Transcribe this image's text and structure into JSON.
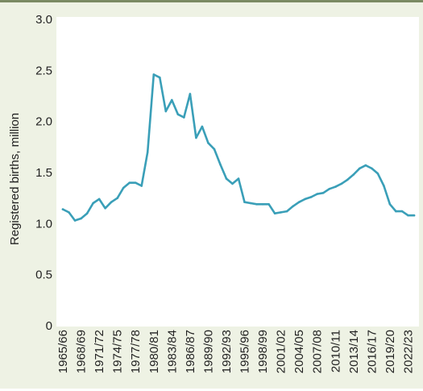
{
  "chart_data": {
    "type": "line",
    "title": "",
    "xlabel": "",
    "ylabel": "Registered births, million",
    "ylim": [
      0,
      3.0
    ],
    "yticks": [
      "3.0",
      "2.5",
      "2.0",
      "1.5",
      "1.0",
      "0.5",
      "0"
    ],
    "ytick_values": [
      3.0,
      2.5,
      2.0,
      1.5,
      1.0,
      0.5,
      0
    ],
    "x_tick_labels": [
      "1965/66",
      "1968/69",
      "1971/72",
      "1974/75",
      "1977/78",
      "1980/81",
      "1983/84",
      "1986/87",
      "1989/90",
      "1992/93",
      "1995/96",
      "1998/99",
      "2001/02",
      "2004/05",
      "2007/08",
      "2010/11",
      "2013/14",
      "2016/17",
      "2019/20",
      "2022/23"
    ],
    "grid": false,
    "line_color": "#3a9fb8",
    "series": [
      {
        "x": [
          "1965/66",
          "1966/67",
          "1967/68",
          "1968/69",
          "1969/70",
          "1970/71",
          "1971/72",
          "1972/73",
          "1973/74",
          "1974/75",
          "1975/76",
          "1976/77",
          "1977/78",
          "1978/79",
          "1979/80",
          "1980/81",
          "1981/82",
          "1982/83",
          "1983/84",
          "1984/85",
          "1985/86",
          "1986/87",
          "1987/88",
          "1988/89",
          "1989/90",
          "1990/91",
          "1991/92",
          "1992/93",
          "1993/94",
          "1994/95",
          "1995/96",
          "1996/97",
          "1997/98",
          "1998/99",
          "1999/00",
          "2000/01",
          "2001/02",
          "2002/03",
          "2003/04",
          "2004/05",
          "2005/06",
          "2006/07",
          "2007/08",
          "2008/09",
          "2009/10",
          "2010/11",
          "2011/12",
          "2012/13",
          "2013/14",
          "2014/15",
          "2015/16",
          "2016/17",
          "2017/18",
          "2018/19",
          "2019/20",
          "2020/21",
          "2021/22",
          "2022/23",
          "2023/24"
        ],
        "values": [
          1.14,
          1.11,
          1.03,
          1.05,
          1.1,
          1.2,
          1.24,
          1.15,
          1.21,
          1.25,
          1.35,
          1.4,
          1.4,
          1.37,
          1.7,
          2.46,
          2.43,
          2.1,
          2.21,
          2.07,
          2.04,
          2.27,
          1.84,
          1.95,
          1.79,
          1.73,
          1.58,
          1.44,
          1.39,
          1.44,
          1.21,
          1.2,
          1.19,
          1.19,
          1.19,
          1.1,
          1.11,
          1.12,
          1.17,
          1.21,
          1.24,
          1.26,
          1.29,
          1.3,
          1.34,
          1.36,
          1.39,
          1.43,
          1.48,
          1.54,
          1.57,
          1.54,
          1.49,
          1.37,
          1.19,
          1.12,
          1.12,
          1.08,
          1.08
        ]
      }
    ]
  }
}
